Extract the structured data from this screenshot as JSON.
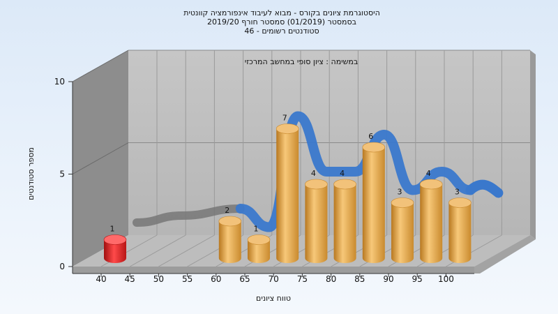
{
  "chart_data": {
    "type": "bar",
    "title_lines": [
      "היסטוגרמת ציונים בקורס - מבוא לעיבוד אינפורמציה קוונטית",
      "בסמסטר  (01/2019)  סמסטר חורף 2019/20",
      "סטודנטים רשומים - 46"
    ],
    "subtitle": "במשימה : ציון סופי במחשב המרכזי",
    "xlabel": "טווח ציונים",
    "ylabel": "מספר סטודנטים",
    "x_ticks": [
      "40",
      "45",
      "50",
      "55",
      "60",
      "65",
      "70",
      "75",
      "80",
      "85",
      "90",
      "95",
      "100"
    ],
    "y_ticks": [
      0,
      5,
      10
    ],
    "ylim": [
      0,
      10
    ],
    "categories": [
      "40",
      "60",
      "65",
      "70",
      "75",
      "80",
      "85",
      "90",
      "95",
      "100"
    ],
    "values": [
      1,
      2,
      1,
      7,
      4,
      4,
      6,
      3,
      4,
      3
    ],
    "failing_color": "#d81e1e",
    "bar_color": "#e8a64a",
    "trend_color": "#3a78cc",
    "trend_shadow_color": "#777777",
    "grid": true,
    "legend": "none"
  }
}
